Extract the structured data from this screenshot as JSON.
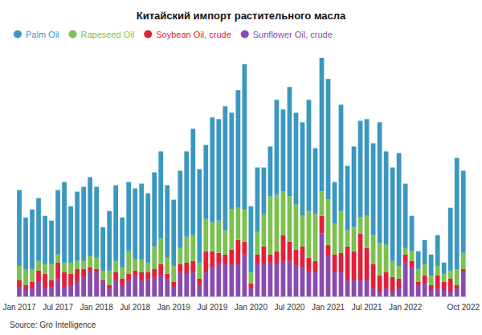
{
  "chart_data": {
    "type": "bar",
    "title": "Китайский импорт растительного масла",
    "annotations": [
      "Source: Gro Intelligence"
    ],
    "stacked": true,
    "grid": false,
    "legend": "top-left",
    "tick_labels": "x",
    "ylim": [
      0,
      310
    ],
    "categories": [
      "Jan 2017",
      null,
      null,
      null,
      null,
      null,
      "Jul 2017",
      null,
      null,
      null,
      null,
      null,
      "Jan 2018",
      null,
      null,
      null,
      null,
      null,
      "Jul 2018",
      null,
      null,
      null,
      null,
      null,
      "Jan 2019",
      null,
      null,
      null,
      null,
      null,
      "Jul 2019",
      null,
      null,
      null,
      null,
      null,
      "Jan 2020",
      null,
      null,
      null,
      null,
      null,
      "Jul 2020",
      null,
      null,
      null,
      null,
      null,
      "Jan 2021",
      null,
      null,
      null,
      null,
      null,
      "Jul 2021",
      null,
      null,
      null,
      null,
      null,
      "Jan 2022",
      null,
      null,
      null,
      null,
      null,
      null,
      null,
      null,
      "Oct 2022"
    ],
    "series": [
      {
        "name": "Palm Oil",
        "color": "#3a98c0",
        "values": [
          94,
          64,
          74,
          78,
          60,
          54,
          80,
          100,
          70,
          86,
          92,
          98,
          88,
          54,
          74,
          94,
          62,
          86,
          88,
          94,
          86,
          92,
          108,
          90,
          82,
          96,
          106,
          132,
          116,
          92,
          130,
          126,
          154,
          120,
          146,
          180,
          82,
          80,
          58,
          62,
          118,
          102,
          136,
          114,
          116,
          138,
          82,
          166,
          150,
          52,
          132,
          80,
          100,
          120,
          120,
          114,
          150,
          116,
          116,
          140,
          80,
          44,
          22,
          30,
          26,
          38,
          14,
          78,
          138,
          102
        ]
      },
      {
        "name": "Rapeseed Oil",
        "color": "#7cc14f",
        "values": [
          18,
          20,
          16,
          12,
          12,
          20,
          10,
          12,
          14,
          10,
          10,
          14,
          14,
          12,
          18,
          14,
          14,
          28,
          14,
          16,
          12,
          28,
          32,
          20,
          20,
          20,
          32,
          32,
          20,
          40,
          36,
          40,
          30,
          50,
          40,
          40,
          14,
          28,
          40,
          72,
          70,
          54,
          56,
          56,
          38,
          58,
          58,
          30,
          56,
          38,
          52,
          20,
          30,
          20,
          40,
          36,
          40,
          34,
          20,
          16,
          8,
          12,
          16,
          14,
          12,
          12,
          10,
          10,
          20,
          20
        ]
      },
      {
        "name": "Soybean Oil, crude",
        "color": "#e2203a",
        "values": [
          8,
          6,
          8,
          14,
          18,
          8,
          20,
          18,
          14,
          16,
          10,
          4,
          4,
          2,
          4,
          10,
          8,
          8,
          6,
          10,
          8,
          10,
          14,
          6,
          6,
          10,
          14,
          14,
          8,
          26,
          20,
          14,
          12,
          20,
          30,
          16,
          6,
          12,
          22,
          10,
          16,
          32,
          24,
          20,
          26,
          18,
          14,
          22,
          14,
          22,
          24,
          42,
          36,
          58,
          40,
          30,
          20,
          20,
          18,
          12,
          10,
          8,
          4,
          10,
          6,
          16,
          10,
          16,
          4,
          4
        ]
      },
      {
        "name": "Sunflower Oil, crude",
        "color": "#8a4bb0",
        "values": [
          12,
          8,
          10,
          18,
          10,
          12,
          22,
          12,
          14,
          18,
          24,
          32,
          30,
          18,
          10,
          20,
          14,
          20,
          26,
          20,
          22,
          24,
          26,
          22,
          12,
          30,
          28,
          30,
          14,
          30,
          36,
          40,
          40,
          38,
          40,
          52,
          10,
          40,
          40,
          42,
          40,
          44,
          44,
          38,
          36,
          30,
          30,
          78,
          50,
          30,
          30,
          20,
          20,
          20,
          20,
          10,
          6,
          10,
          6,
          10,
          42,
          36,
          14,
          16,
          8,
          10,
          8,
          6,
          10,
          30
        ]
      }
    ]
  }
}
